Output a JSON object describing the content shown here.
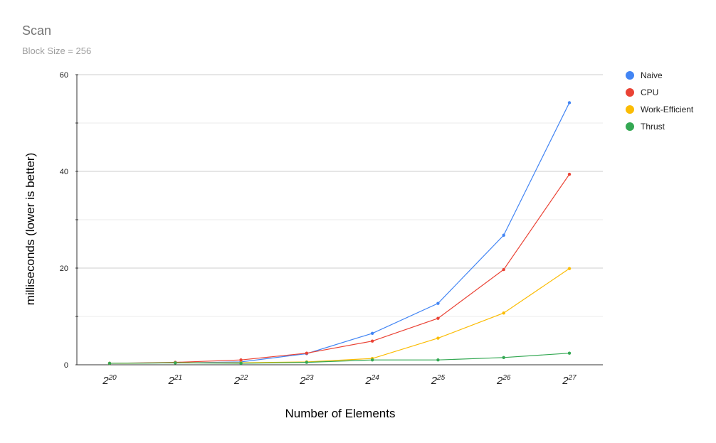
{
  "chart_data": {
    "type": "line",
    "title": "Scan",
    "subtitle": "Block Size = 256",
    "xlabel": "Number of Elements",
    "ylabel": "milliseconds (lower is better)",
    "categories": [
      {
        "base": "2",
        "exp": "20"
      },
      {
        "base": "2",
        "exp": "21"
      },
      {
        "base": "2",
        "exp": "22"
      },
      {
        "base": "2",
        "exp": "23"
      },
      {
        "base": "2",
        "exp": "24"
      },
      {
        "base": "2",
        "exp": "25"
      },
      {
        "base": "2",
        "exp": "26"
      },
      {
        "base": "2",
        "exp": "27"
      }
    ],
    "ylim": [
      0,
      60
    ],
    "yticks": [
      0,
      20,
      40,
      60
    ],
    "grid": true,
    "legend_position": "right",
    "series": [
      {
        "name": "Naive",
        "color": "#4285f4",
        "values": [
          0.3,
          0.4,
          0.6,
          2.3,
          6.5,
          12.7,
          26.8,
          54.2
        ]
      },
      {
        "name": "CPU",
        "color": "#ea4335",
        "values": [
          0.3,
          0.5,
          1.0,
          2.4,
          4.9,
          9.6,
          19.7,
          39.4
        ]
      },
      {
        "name": "Work-Efficient",
        "color": "#fbbc04",
        "values": [
          0.3,
          0.4,
          0.4,
          0.6,
          1.3,
          5.5,
          10.7,
          19.9
        ]
      },
      {
        "name": "Thrust",
        "color": "#34a853",
        "values": [
          0.3,
          0.4,
          0.3,
          0.5,
          1.0,
          1.0,
          1.5,
          2.4
        ]
      }
    ]
  }
}
